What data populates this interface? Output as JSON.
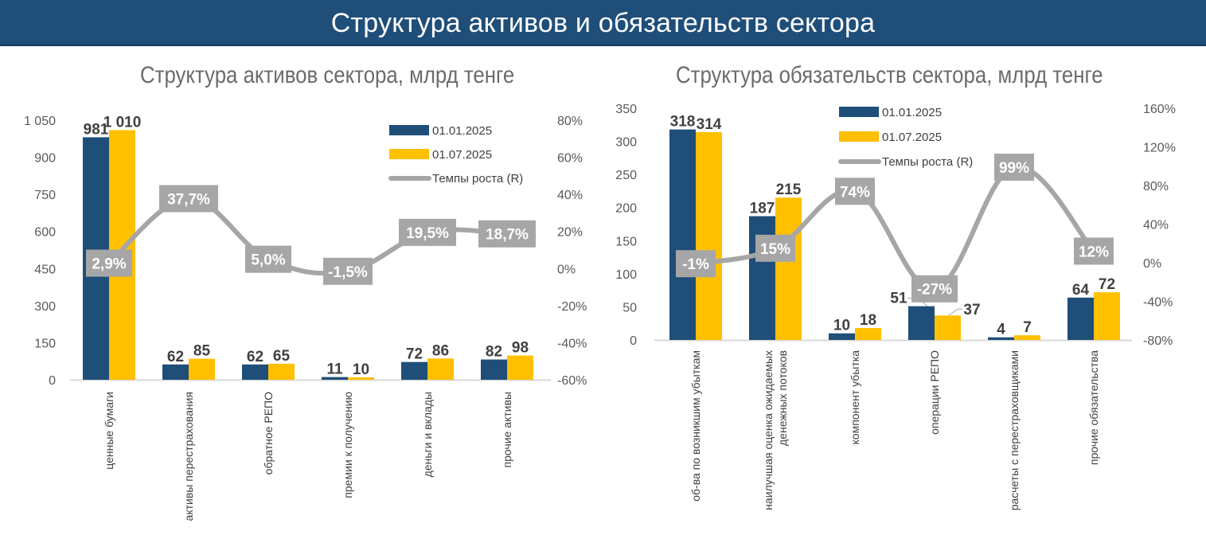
{
  "header": {
    "title": "Структура активов и обязательств сектора"
  },
  "colors": {
    "series1": "#1f4e79",
    "series2": "#ffc000",
    "line": "#a6a6a6",
    "banner": "#1f4e79"
  },
  "chart_data": [
    {
      "type": "bar",
      "title": "Структура активов сектора, млрд тенге",
      "categories": [
        "ценные бумаги",
        "активы перестрахования",
        "обратное РЕПО",
        "премии к получению",
        "деньги и вклады",
        "прочие активы"
      ],
      "category_lines": [
        [
          "ценные бумаги"
        ],
        [
          "активы перестрахования"
        ],
        [
          "обратное РЕПО"
        ],
        [
          "премии к получению"
        ],
        [
          "деньги и вклады"
        ],
        [
          "прочие активы"
        ]
      ],
      "series": [
        {
          "name": "01.01.2025",
          "values": [
            981,
            62,
            62,
            11,
            72,
            82
          ],
          "labels": [
            "981",
            "62",
            "62",
            "11",
            "72",
            "82"
          ]
        },
        {
          "name": "01.07.2025",
          "values": [
            1010,
            85,
            65,
            10,
            86,
            98
          ],
          "labels": [
            "1 010",
            "85",
            "65",
            "10",
            "86",
            "98"
          ]
        }
      ],
      "line_series": {
        "name": "Темпы роста (R)",
        "values": [
          2.9,
          37.7,
          5.0,
          -1.5,
          19.5,
          18.7
        ],
        "labels": [
          "2,9%",
          "37,7%",
          "5,0%",
          "-1,5%",
          "19,5%",
          "18,7%"
        ]
      },
      "ylim": [
        0,
        1050
      ],
      "yticks": [
        "0",
        "150",
        "300",
        "450",
        "600",
        "750",
        "900",
        "1 050"
      ],
      "y2lim": [
        -60,
        80
      ],
      "y2ticks": [
        "-60%",
        "-40%",
        "-20%",
        "0%",
        "20%",
        "40%",
        "60%",
        "80%"
      ],
      "legend": "top-right",
      "grid": false
    },
    {
      "type": "bar",
      "title": "Структура обязательств сектора, млрд тенге",
      "categories": [
        "об-ва по возникшим убыткам",
        "наилучшая оценка ожидаемых денежных потоков",
        "компонент убытка",
        "операции РЕПО",
        "расчеты с перестраховщиками",
        "прочие обязательства"
      ],
      "category_lines": [
        [
          "об-ва по возникшим убыткам"
        ],
        [
          "наилучшая оценка ожидаемых",
          "денежных потоков"
        ],
        [
          "компонент убытка"
        ],
        [
          "операции РЕПО"
        ],
        [
          "расчеты с перестраховщиками"
        ],
        [
          "прочие обязательства"
        ]
      ],
      "series": [
        {
          "name": "01.01.2025",
          "values": [
            318,
            187,
            10,
            51,
            4,
            64
          ],
          "labels": [
            "318",
            "187",
            "10",
            "51",
            "4",
            "64"
          ]
        },
        {
          "name": "01.07.2025",
          "values": [
            314,
            215,
            18,
            37,
            7,
            72
          ],
          "labels": [
            "314",
            "215",
            "18",
            "37",
            "7",
            "72"
          ]
        }
      ],
      "line_series": {
        "name": "Темпы роста (R)",
        "values": [
          -1,
          15,
          74,
          -27,
          99,
          12
        ],
        "labels": [
          "-1%",
          "15%",
          "74%",
          "-27%",
          "99%",
          "12%"
        ]
      },
      "ylim": [
        0,
        350
      ],
      "yticks": [
        "0",
        "50",
        "100",
        "150",
        "200",
        "250",
        "300",
        "350"
      ],
      "y2lim": [
        -80,
        160
      ],
      "y2ticks": [
        "-80%",
        "-40%",
        "0%",
        "40%",
        "80%",
        "120%",
        "160%"
      ],
      "legend": "top-center",
      "grid": false
    }
  ]
}
